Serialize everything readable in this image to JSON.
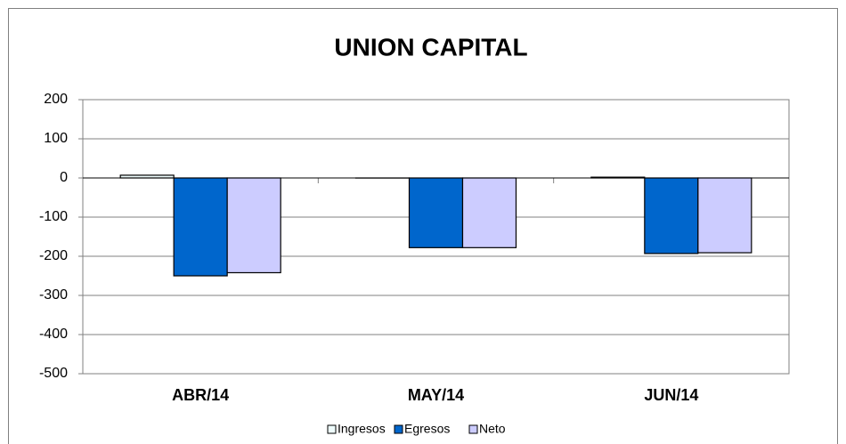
{
  "chart_data": {
    "type": "bar",
    "title": "UNION CAPITAL",
    "categories": [
      "ABR/14",
      "MAY/14",
      "JUN/14"
    ],
    "series": [
      {
        "name": "Ingresos",
        "color": "#eefcfc",
        "values": [
          7,
          0,
          2
        ]
      },
      {
        "name": "Egresos",
        "color": "#0066cc",
        "values": [
          -250,
          -178,
          -193
        ]
      },
      {
        "name": "Neto",
        "color": "#ccccff",
        "values": [
          -242,
          -178,
          -191
        ]
      }
    ],
    "ylim": [
      -500,
      200
    ],
    "yticks": [
      -500,
      -400,
      -300,
      -200,
      -100,
      0,
      100,
      200
    ],
    "grid": true,
    "legend": "bottom"
  }
}
